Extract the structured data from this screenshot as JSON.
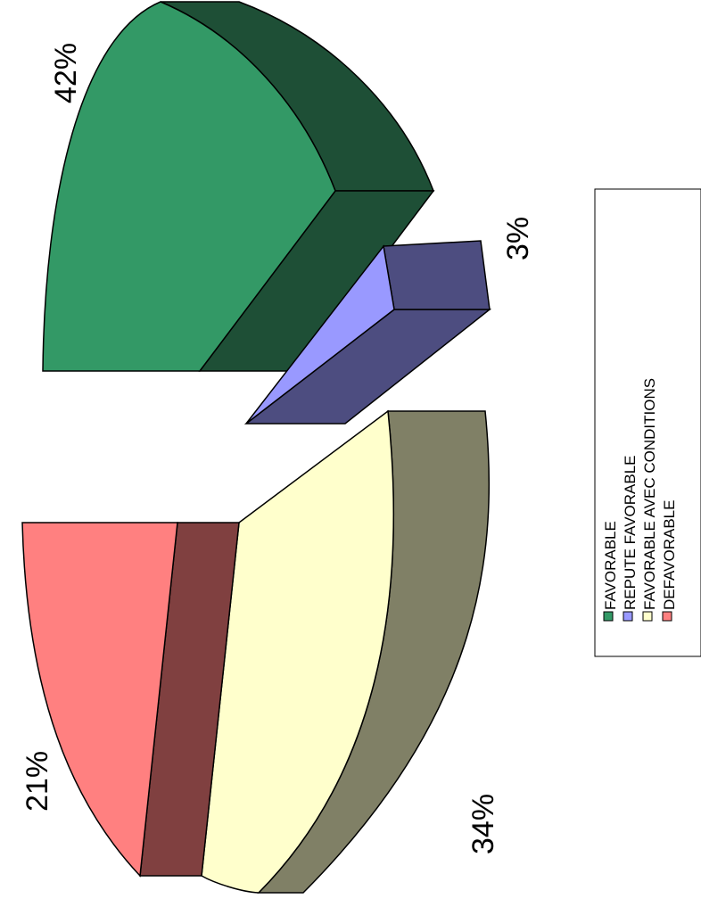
{
  "chart_data": {
    "type": "pie",
    "style": "3d-exploded, rotated 90 degrees counter-clockwise",
    "categories": [
      "FAVORABLE",
      "REPUTE FAVORABLE",
      "FAVORABLE AVEC CONDITIONS",
      "DEFAVORABLE"
    ],
    "values": [
      42,
      3,
      34,
      21
    ],
    "labels": [
      "42%",
      "3%",
      "34%",
      "21%"
    ],
    "colors": [
      "#339966",
      "#9999FF",
      "#FFFFCC",
      "#FF8080"
    ],
    "side_colors": [
      "#1E4F36",
      "#4D4D80",
      "#808066",
      "#804040"
    ],
    "legend_placement": "right",
    "title": ""
  }
}
